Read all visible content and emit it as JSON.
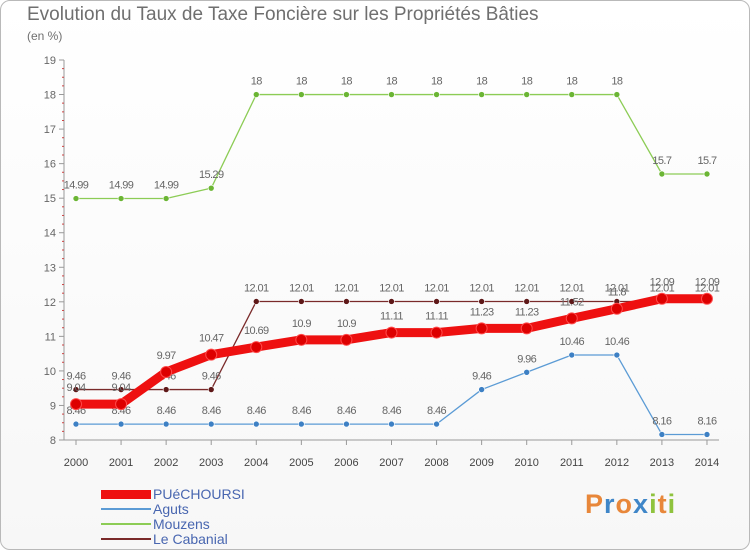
{
  "header": {
    "title": "Evolution du Taux de Taxe Foncière sur les Propriétés Bâties",
    "unit": "(en %)"
  },
  "brand": {
    "letters": [
      "P",
      "r",
      "o",
      "x",
      "i",
      "t",
      "i"
    ],
    "colors": [
      "#e8873a",
      "#3f86c8",
      "#e8873a",
      "#3f86c8",
      "#8fc33e",
      "#e8873a",
      "#8fc33e"
    ]
  },
  "chart_data": {
    "type": "line",
    "title": "Evolution du Taux de Taxe Foncière sur les Propriétés Bâties",
    "xlabel": "",
    "ylabel": "(en %)",
    "ylim": [
      8,
      19
    ],
    "grid": false,
    "legend_position": "bottom-left",
    "x": [
      "2000",
      "2001",
      "2002",
      "2003",
      "2004",
      "2005",
      "2006",
      "2007",
      "2008",
      "2009",
      "2010",
      "2011",
      "2012",
      "2013",
      "2014"
    ],
    "y_ticks": [
      "8",
      "9",
      "10",
      "11",
      "12",
      "13",
      "14",
      "15",
      "16",
      "17",
      "18",
      "19"
    ],
    "series": [
      {
        "name": "PUéCHOURSI",
        "color": "#ee1010",
        "marker_color": "#dd0000",
        "values": [
          9.04,
          9.04,
          9.97,
          10.47,
          10.69,
          10.9,
          10.9,
          11.11,
          11.11,
          11.23,
          11.23,
          11.52,
          11.8,
          12.09,
          12.09
        ],
        "labels": [
          "9.04",
          "9.04",
          "9.97",
          "10.47",
          "10.69",
          "10.9",
          "10.9",
          "11.11",
          "11.11",
          "11.23",
          "11.23",
          "11.52",
          "11.8",
          "12.09",
          "12.09"
        ]
      },
      {
        "name": "Aguts",
        "color": "#5b9bd5",
        "marker_color": "#3d80c4",
        "values": [
          8.46,
          8.46,
          8.46,
          8.46,
          8.46,
          8.46,
          8.46,
          8.46,
          8.46,
          9.46,
          9.96,
          10.46,
          10.46,
          8.16,
          8.16
        ],
        "labels": [
          "8.46",
          "8.46",
          "8.46",
          "8.46",
          "8.46",
          "8.46",
          "8.46",
          "8.46",
          "8.46",
          "9.46",
          "9.96",
          "10.46",
          "10.46",
          "8.16",
          "8.16"
        ]
      },
      {
        "name": "Mouzens",
        "color": "#8ccc55",
        "marker_color": "#6bb534",
        "values": [
          14.99,
          14.99,
          14.99,
          15.29,
          18,
          18,
          18,
          18,
          18,
          18,
          18,
          18,
          18,
          15.7,
          15.7
        ],
        "labels": [
          "14.99",
          "14.99",
          "14.99",
          "15.29",
          "18",
          "18",
          "18",
          "18",
          "18",
          "18",
          "18",
          "18",
          "18",
          "15.7",
          "15.7"
        ]
      },
      {
        "name": "Le Cabanial",
        "color": "#7a2a2a",
        "marker_color": "#5e1818",
        "values": [
          9.46,
          9.46,
          9.46,
          9.46,
          12.01,
          12.01,
          12.01,
          12.01,
          12.01,
          12.01,
          12.01,
          12.01,
          12.01,
          12.01,
          12.01
        ],
        "labels": [
          "9.46",
          "9.46",
          "9.46",
          "9.46",
          "12.01",
          "12.01",
          "12.01",
          "12.01",
          "12.01",
          "12.01",
          "12.01",
          "12.01",
          "12.01",
          "12.01",
          "12.01"
        ]
      }
    ]
  }
}
